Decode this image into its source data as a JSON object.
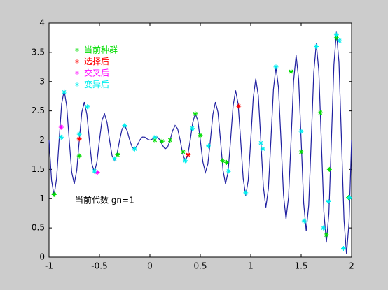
{
  "chart_data": {
    "type": "line",
    "color": "#1f1fa0",
    "x": [
      -1,
      -0.975,
      -0.95,
      -0.925,
      -0.9,
      -0.875,
      -0.85,
      -0.825,
      -0.8,
      -0.775,
      -0.75,
      -0.725,
      -0.7,
      -0.675,
      -0.65,
      -0.625,
      -0.6,
      -0.575,
      -0.55,
      -0.525,
      -0.5,
      -0.475,
      -0.45,
      -0.425,
      -0.4,
      -0.375,
      -0.35,
      -0.325,
      -0.3,
      -0.275,
      -0.25,
      -0.225,
      -0.2,
      -0.175,
      -0.15,
      -0.125,
      -0.1,
      -0.075,
      -0.05,
      -0.025,
      0,
      0.025,
      0.05,
      0.075,
      0.1,
      0.125,
      0.15,
      0.175,
      0.2,
      0.225,
      0.25,
      0.275,
      0.3,
      0.325,
      0.35,
      0.375,
      0.4,
      0.425,
      0.45,
      0.475,
      0.5,
      0.525,
      0.55,
      0.575,
      0.6,
      0.625,
      0.65,
      0.675,
      0.7,
      0.725,
      0.75,
      0.775,
      0.8,
      0.825,
      0.85,
      0.875,
      0.9,
      0.925,
      0.95,
      0.975,
      1,
      1.025,
      1.05,
      1.075,
      1.1,
      1.125,
      1.15,
      1.175,
      1.2,
      1.225,
      1.25,
      1.275,
      1.3,
      1.325,
      1.35,
      1.375,
      1.4,
      1.425,
      1.45,
      1.475,
      1.5,
      1.525,
      1.55,
      1.575,
      1.6,
      1.625,
      1.65,
      1.675,
      1.7,
      1.725,
      1.75,
      1.775,
      1.8,
      1.825,
      1.85,
      1.875,
      1.9,
      1.925,
      1.95,
      1.975,
      2
    ],
    "values": [
      2,
      1.311,
      1.05,
      1.346,
      2,
      2.619,
      2.85,
      2.583,
      2,
      1.452,
      1.25,
      1.487,
      2,
      2.477,
      2.65,
      2.442,
      2,
      1.593,
      1.45,
      1.629,
      2,
      2.336,
      2.45,
      2.301,
      2,
      1.735,
      1.65,
      1.77,
      2,
      2.194,
      2.25,
      2.159,
      2,
      1.876,
      1.85,
      1.912,
      2,
      2.053,
      2.05,
      2.018,
      2,
      2.018,
      2.05,
      2.053,
      2,
      1.912,
      1.85,
      1.876,
      2,
      2.159,
      2.25,
      2.194,
      2,
      1.77,
      1.65,
      1.735,
      2,
      2.301,
      2.45,
      2.336,
      2,
      1.629,
      1.45,
      1.593,
      2,
      2.442,
      2.65,
      2.477,
      2,
      1.487,
      1.25,
      1.452,
      2,
      2.583,
      2.85,
      2.619,
      2,
      1.346,
      1.05,
      1.311,
      2,
      2.725,
      3.05,
      2.76,
      2,
      1.205,
      0.85,
      1.169,
      2,
      2.866,
      3.25,
      2.902,
      2,
      1.063,
      0.65,
      1.028,
      2,
      3.008,
      3.45,
      3.043,
      2,
      0.922,
      0.45,
      0.886,
      2,
      3.149,
      3.65,
      3.184,
      2,
      0.78,
      0.25,
      0.745,
      2,
      3.29,
      3.85,
      3.326,
      2,
      0.639,
      0.05,
      0.603,
      2
    ],
    "series": [
      {
        "name": "当前种群",
        "color": "#00dd00",
        "marker": "*",
        "x": [
          -0.95,
          -0.7,
          -0.32,
          0.05,
          0.12,
          0.2,
          0.33,
          0.45,
          0.5,
          0.72,
          0.76,
          1.4,
          1.5,
          1.69,
          1.75,
          1.78,
          1.85,
          1.97
        ],
        "values": [
          1.07,
          1.73,
          1.75,
          2.0,
          1.98,
          2.0,
          1.8,
          2.45,
          2.08,
          1.65,
          1.62,
          3.17,
          1.8,
          2.47,
          0.38,
          1.5,
          3.75,
          1.02
        ]
      },
      {
        "name": "选择后",
        "color": "#ff0000",
        "marker": "*",
        "x": [
          -0.7,
          0.38,
          0.88
        ],
        "values": [
          2.02,
          1.75,
          2.58
        ]
      },
      {
        "name": "交叉后",
        "color": "#ff00ff",
        "marker": "*",
        "x": [
          -0.88,
          -0.52
        ],
        "values": [
          2.22,
          1.45
        ]
      },
      {
        "name": "变异后",
        "color": "#00eeee",
        "marker": "*",
        "x": [
          -0.88,
          -0.85,
          -0.7,
          -0.62,
          -0.55,
          -0.35,
          -0.25,
          -0.15,
          0.05,
          0.35,
          0.42,
          0.58,
          0.78,
          0.95,
          1.1,
          1.12,
          1.25,
          1.5,
          1.53,
          1.65,
          1.72,
          1.77,
          1.85,
          1.88,
          1.92,
          1.98
        ],
        "values": [
          2.05,
          2.82,
          2.1,
          2.57,
          1.47,
          1.68,
          2.25,
          1.85,
          2.05,
          1.65,
          2.2,
          1.9,
          1.47,
          1.1,
          1.95,
          1.85,
          3.25,
          2.15,
          0.62,
          3.6,
          0.5,
          0.95,
          3.8,
          3.7,
          0.15,
          1.02
        ]
      }
    ],
    "legend": "upper left",
    "annotation": "当前代数 gn=1",
    "xlim": [
      -1,
      2
    ],
    "xticks": [
      -1,
      -0.5,
      0,
      0.5,
      1,
      1.5,
      2
    ],
    "ylim": [
      0,
      4
    ],
    "yticks": [
      0,
      0.5,
      1,
      1.5,
      2,
      2.5,
      3,
      3.5,
      4
    ],
    "grid": false
  }
}
